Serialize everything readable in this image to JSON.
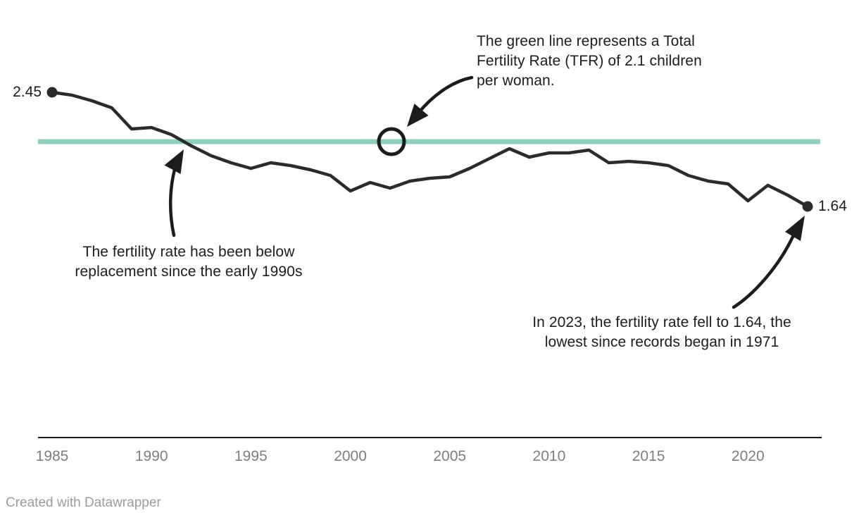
{
  "chart_data": {
    "type": "line",
    "title": "",
    "xlabel": "",
    "ylabel": "",
    "x": [
      1985,
      1986,
      1987,
      1988,
      1989,
      1990,
      1991,
      1992,
      1993,
      1994,
      1995,
      1996,
      1997,
      1998,
      1999,
      2000,
      2001,
      2002,
      2003,
      2004,
      2005,
      2006,
      2007,
      2008,
      2009,
      2010,
      2011,
      2012,
      2013,
      2014,
      2015,
      2016,
      2017,
      2018,
      2019,
      2020,
      2021,
      2022,
      2023
    ],
    "series": [
      {
        "name": "Total Fertility Rate",
        "color": "#2b2b2b",
        "values": [
          2.45,
          2.43,
          2.39,
          2.34,
          2.19,
          2.2,
          2.15,
          2.07,
          2.0,
          1.95,
          1.91,
          1.95,
          1.93,
          1.9,
          1.86,
          1.75,
          1.81,
          1.77,
          1.82,
          1.84,
          1.85,
          1.91,
          1.98,
          2.05,
          1.99,
          2.02,
          2.02,
          2.04,
          1.95,
          1.96,
          1.95,
          1.93,
          1.86,
          1.82,
          1.8,
          1.68,
          1.79,
          1.72,
          1.64
        ],
        "first_point_label": "2.45",
        "last_point_label": "1.64"
      }
    ],
    "reference_line": {
      "value": 2.1,
      "color": "#90cfc0",
      "meaning": "replacement-level TFR of 2.1 children per woman"
    },
    "x_ticks": [
      1985,
      1990,
      1995,
      2000,
      2005,
      2010,
      2015,
      2020
    ],
    "xlim": [
      1985,
      2023
    ],
    "ylim": [
      1.6,
      3.1
    ],
    "grid": false,
    "legend": false
  },
  "annotations": {
    "green_line_note": {
      "lines": [
        "The green line represents a Total",
        "Fertility Rate (TFR) of 2.1 children",
        "per woman."
      ]
    },
    "replacement_note": {
      "lines": [
        "The fertility rate has been below",
        "replacement since the early 1990s"
      ]
    },
    "record_low_note": {
      "lines": [
        "In 2023, the fertility rate fell to 1.64, the",
        "lowest since records began in 1971"
      ]
    }
  },
  "footer": {
    "credit": "Created with Datawrapper"
  },
  "colors": {
    "line": "#2b2b2b",
    "reference_green": "#90cfc0",
    "axis_text": "#7e7e7e",
    "axis_line": "#1a1a1a",
    "annotation_text": "#1c1c1c",
    "footer_text": "#9c9c9c",
    "background": "#ffffff"
  }
}
